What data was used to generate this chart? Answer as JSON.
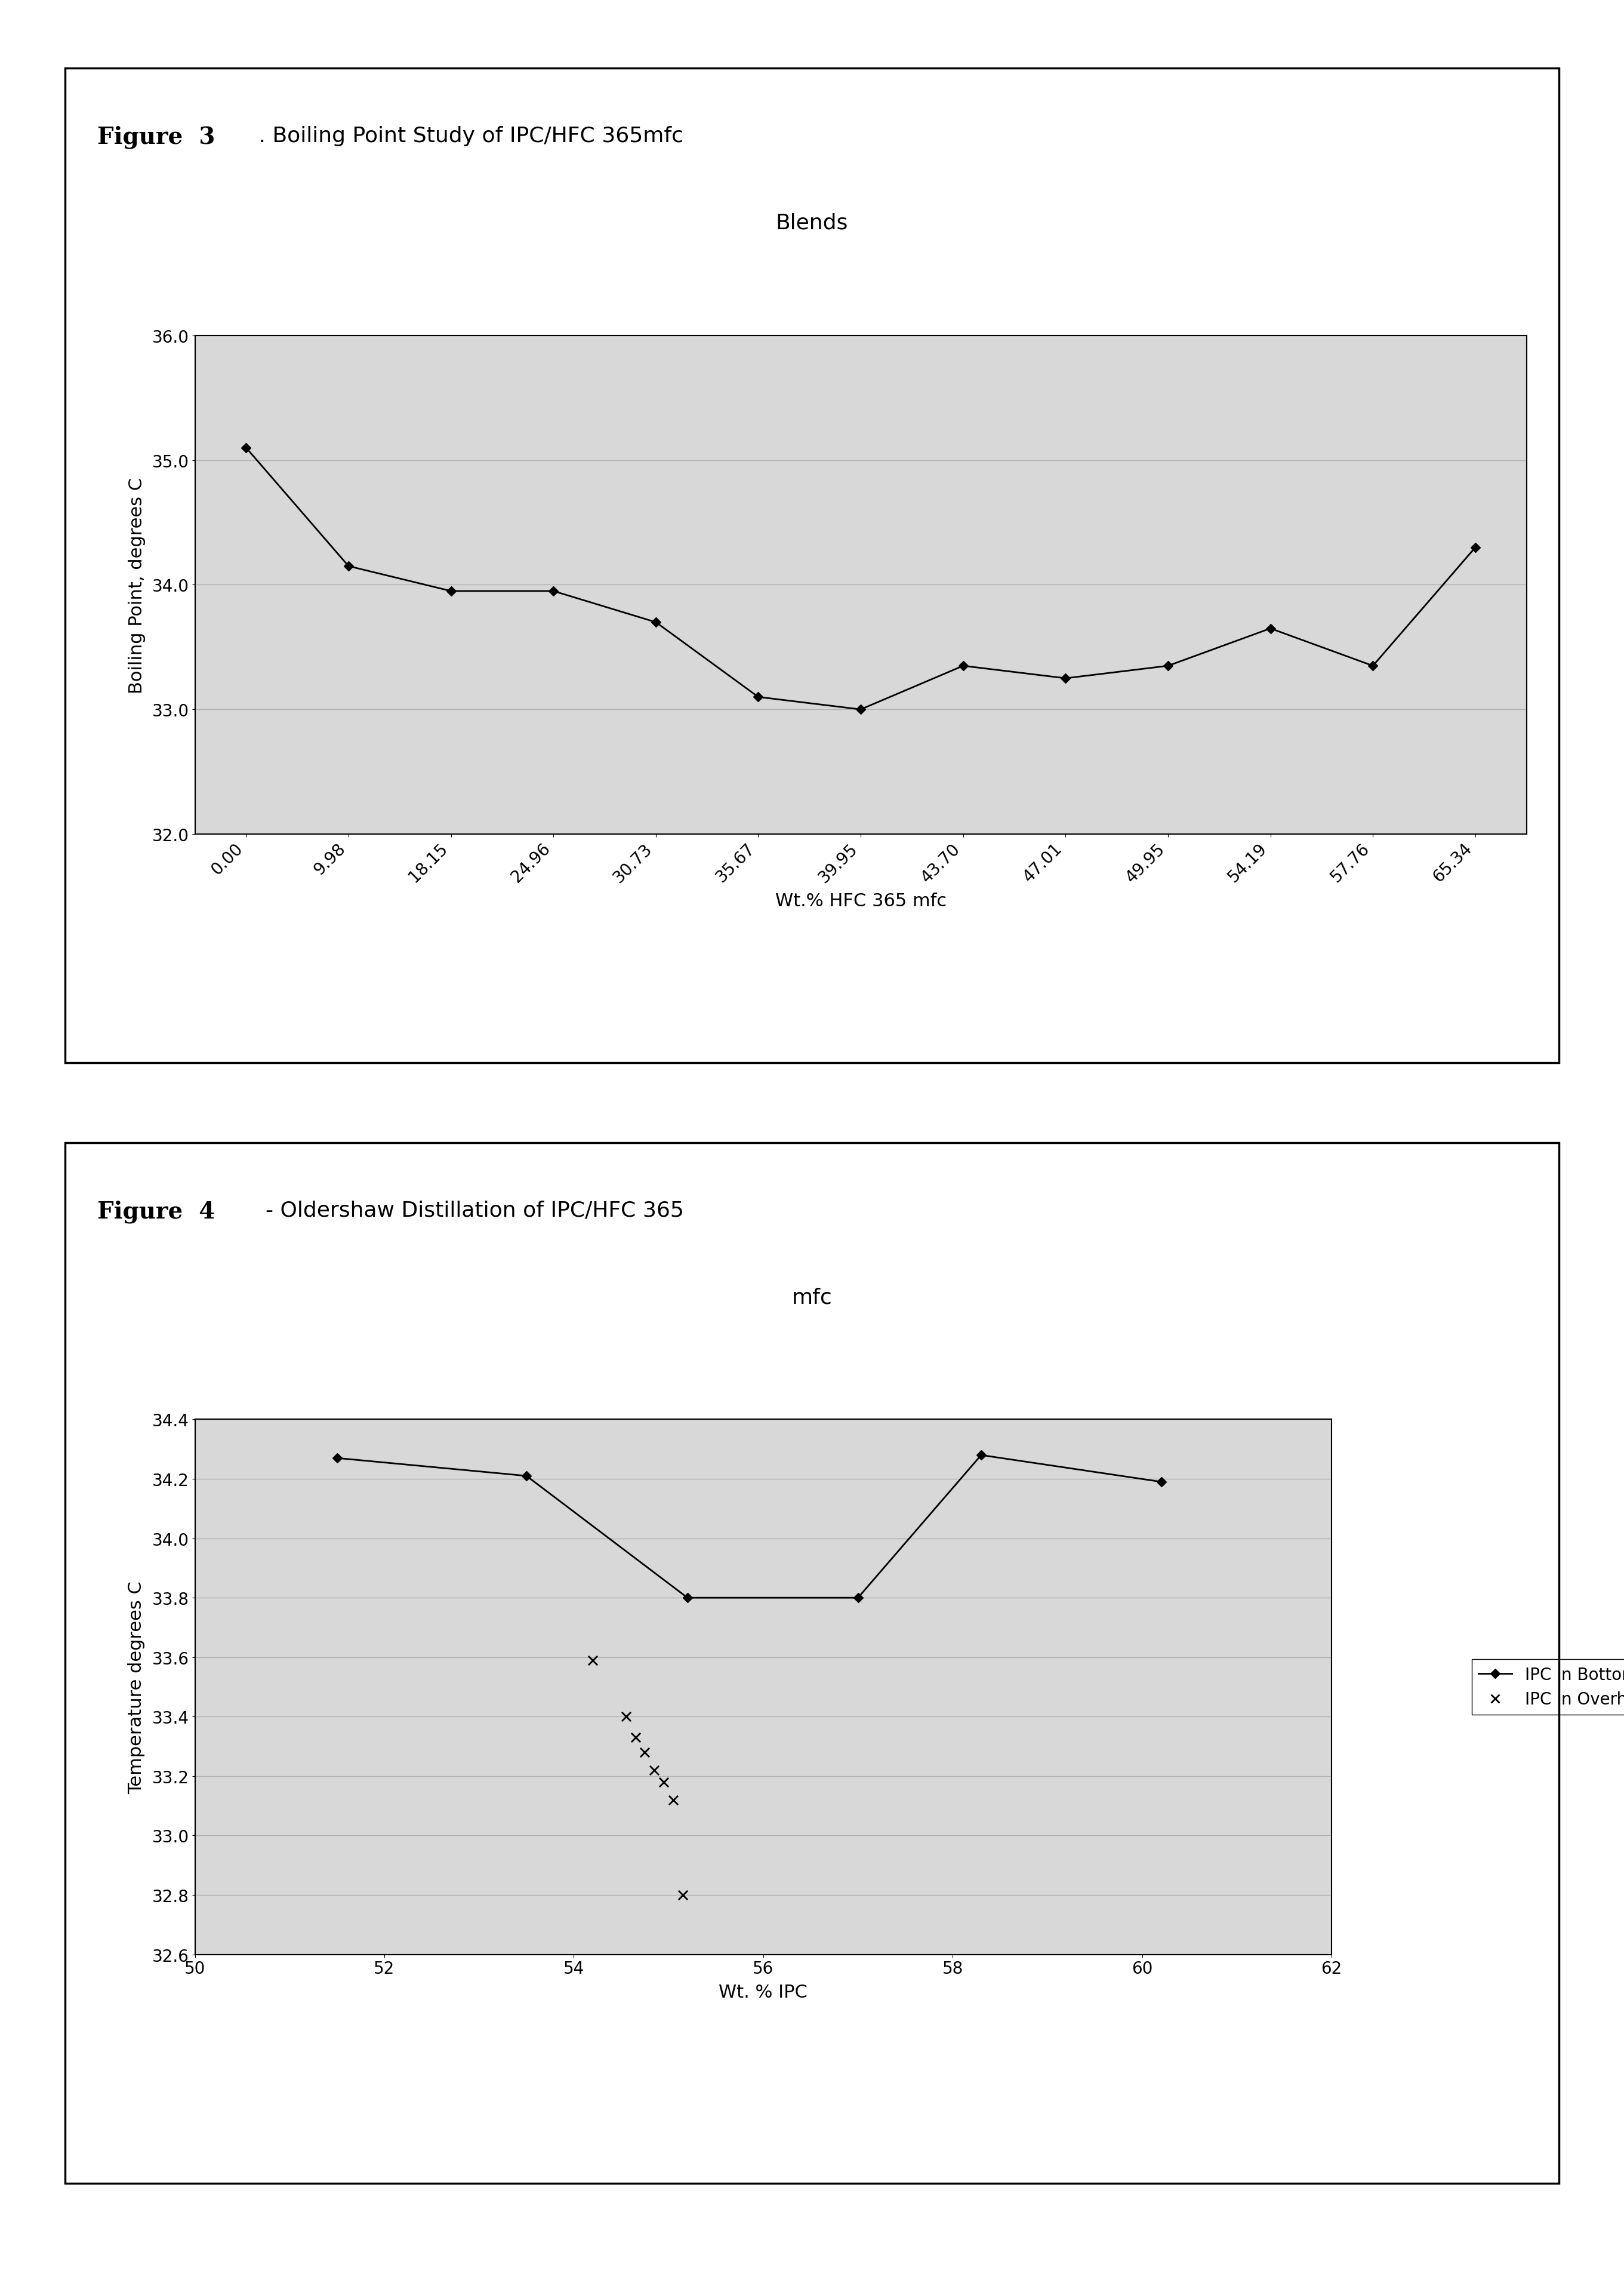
{
  "fig1": {
    "title_bold": "Figure  3",
    "title_normal": " . Boiling Point Study of IPC/HFC 365mfc",
    "title_line2": "Blends",
    "xlabel": "Wt.% HFC 365 mfc",
    "ylabel": "Boiling Point, degrees C",
    "x_labels": [
      "0.00",
      "9.98",
      "18.15",
      "24.96",
      "30.73",
      "35.67",
      "39.95",
      "43.70",
      "47.01",
      "49.95",
      "54.19",
      "57.76",
      "65.34"
    ],
    "x_values": [
      0,
      1,
      2,
      3,
      4,
      5,
      6,
      7,
      8,
      9,
      10,
      11,
      12
    ],
    "y_values": [
      35.1,
      34.15,
      33.95,
      33.95,
      33.7,
      33.1,
      33.0,
      33.35,
      33.25,
      33.35,
      33.65,
      33.35,
      34.3
    ],
    "ylim": [
      32.0,
      36.0
    ],
    "yticks": [
      32.0,
      33.0,
      34.0,
      35.0,
      36.0
    ],
    "ytick_labels": [
      "32.0",
      "33.0",
      "34.0",
      "35.0",
      "36.0"
    ]
  },
  "fig2": {
    "title_bold": "Figure  4",
    "title_normal": "  - Oldershaw Distillation of IPC/HFC 365",
    "title_line2": "mfc",
    "xlabel": "Wt. % IPC",
    "ylabel": "Temperature degrees C",
    "xlim": [
      50,
      62
    ],
    "xticks": [
      50,
      52,
      54,
      56,
      58,
      60,
      62
    ],
    "ylim": [
      32.6,
      34.4
    ],
    "yticks": [
      32.6,
      32.8,
      33.0,
      33.2,
      33.4,
      33.6,
      33.8,
      34.0,
      34.2,
      34.4
    ],
    "bottoms_x": [
      51.5,
      53.5,
      55.2,
      57.0,
      58.3,
      60.2
    ],
    "bottoms_y": [
      34.27,
      34.21,
      33.8,
      33.8,
      34.28,
      34.19
    ],
    "overhead_x": [
      54.2,
      54.55,
      54.65,
      54.75,
      54.85,
      54.95,
      55.05,
      55.15
    ],
    "overhead_y": [
      33.59,
      33.4,
      33.33,
      33.28,
      33.22,
      33.18,
      33.12,
      32.8
    ],
    "legend_bottoms": "IPC in Bottoms",
    "legend_overhead": "IPC in Overhead"
  },
  "line_color": "#000000",
  "marker": "D",
  "marker_size": 8,
  "background_color": "#ffffff",
  "plot_bg_color": "#d8d8d8",
  "grid_color": "#b0b0b0",
  "title_fontsize": 28,
  "tick_fontsize": 20,
  "label_fontsize": 22,
  "legend_fontsize": 20
}
